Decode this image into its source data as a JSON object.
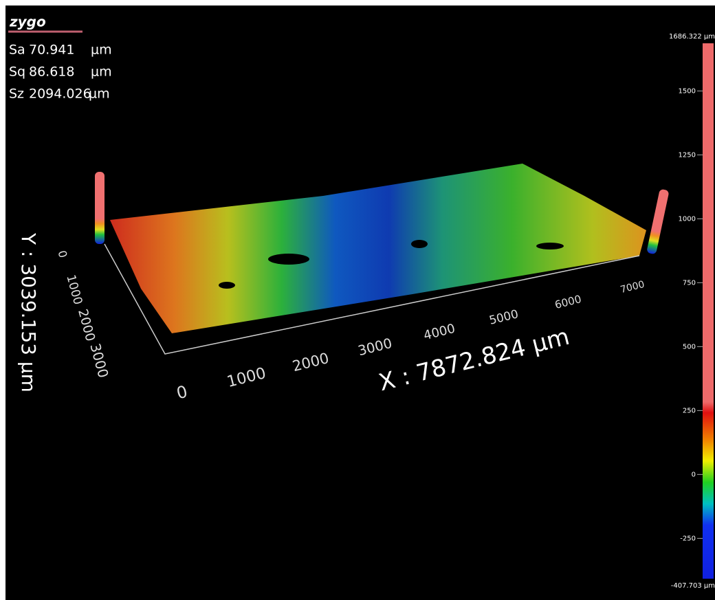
{
  "logo": "zygo",
  "stats": [
    {
      "name": "Sa",
      "value": "70.941",
      "unit": "µm"
    },
    {
      "name": "Sq",
      "value": "86.618",
      "unit": "µm"
    },
    {
      "name": "Sz",
      "value": "2094.026",
      "unit": "µm"
    }
  ],
  "color_scale": {
    "lim": [
      -407.703,
      1686.322
    ],
    "ticks": [
      {
        "value": 1686.322,
        "label": "1686.322 µm"
      },
      1500,
      1250,
      1000,
      750,
      500,
      250,
      0,
      -250,
      {
        "value": -407.703,
        "label": "-407.703 µm"
      }
    ]
  },
  "x_axis": {
    "label": "X : 7872.824 µm",
    "ticks": [
      "0",
      "1000",
      "2000",
      "3000",
      "4000",
      "5000",
      "6000",
      "7000"
    ]
  },
  "y_axis": {
    "label": "Y : 3039.153 µm",
    "ticks": [
      "0",
      "1000",
      "2000",
      "3000"
    ]
  }
}
